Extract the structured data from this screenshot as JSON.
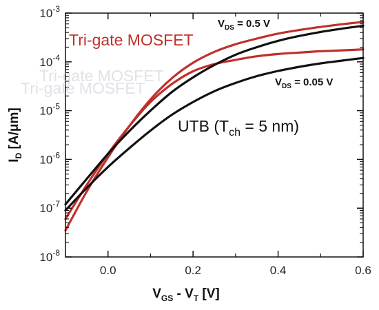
{
  "chart_data": {
    "type": "line",
    "title": "",
    "xlabel_main": "V",
    "xlabel_sub1": "GS",
    "xlabel_mid": " - V",
    "xlabel_sub2": "T",
    "xlabel_tail": " [V]",
    "ylabel_main": "I",
    "ylabel_sub": "D",
    "ylabel_tail": " [A/μm]",
    "xlim": [
      -0.1,
      0.6
    ],
    "ylim": [
      1e-08,
      0.001
    ],
    "y_scale": "log",
    "x_ticks": [
      0.0,
      0.2,
      0.4,
      0.6
    ],
    "x_tick_labels": [
      "0.0",
      "0.2",
      "0.4",
      "0.6"
    ],
    "y_ticks": [
      {
        "base": "10",
        "exp": "-8"
      },
      {
        "base": "10",
        "exp": "-7"
      },
      {
        "base": "10",
        "exp": "-6"
      },
      {
        "base": "10",
        "exp": "-5"
      },
      {
        "base": "10",
        "exp": "-4"
      },
      {
        "base": "10",
        "exp": "-3"
      }
    ],
    "grid": false,
    "series": [
      {
        "color": "#c0302a",
        "x": [
          -0.1,
          -0.05,
          0.0,
          0.05,
          0.1,
          0.15,
          0.2,
          0.25,
          0.3,
          0.35,
          0.4,
          0.45,
          0.5,
          0.55,
          0.6
        ],
        "y": [
          3.5e-08,
          2.2e-07,
          1.1e-06,
          4.8e-06,
          1.7e-05,
          4.6e-05,
          9.6e-05,
          0.00016,
          0.00023,
          0.0003,
          0.00038,
          0.00045,
          0.00052,
          0.00059,
          0.00066
        ]
      },
      {
        "color": "#c0302a",
        "x": [
          -0.1,
          -0.05,
          0.0,
          0.05,
          0.1,
          0.15,
          0.2,
          0.25,
          0.3,
          0.35,
          0.4,
          0.45,
          0.5,
          0.55,
          0.6
        ],
        "y": [
          6e-08,
          3e-07,
          1.3e-06,
          4.8e-06,
          1.5e-05,
          3.5e-05,
          6.4e-05,
          9e-05,
          0.00011,
          0.00013,
          0.000145,
          0.000155,
          0.000165,
          0.000172,
          0.00018
        ]
      },
      {
        "color": "#111111",
        "x": [
          -0.1,
          -0.05,
          0.0,
          0.05,
          0.1,
          0.15,
          0.2,
          0.25,
          0.3,
          0.35,
          0.4,
          0.45,
          0.5,
          0.55,
          0.6
        ],
        "y": [
          1.2e-07,
          4e-07,
          1.3e-06,
          3.8e-06,
          1e-05,
          2.4e-05,
          4.8e-05,
          8.6e-05,
          0.00014,
          0.0002,
          0.00027,
          0.00034,
          0.00041,
          0.00048,
          0.00055
        ]
      },
      {
        "color": "#111111",
        "x": [
          -0.1,
          -0.05,
          0.0,
          0.05,
          0.1,
          0.15,
          0.2,
          0.25,
          0.3,
          0.35,
          0.4,
          0.45,
          0.5,
          0.55,
          0.6
        ],
        "y": [
          9e-08,
          2.6e-07,
          7e-07,
          1.7e-06,
          3.9e-06,
          8.2e-06,
          1.5e-05,
          2.5e-05,
          3.7e-05,
          5.1e-05,
          6.5e-05,
          7.9e-05,
          9.3e-05,
          0.000106,
          0.00012
        ]
      }
    ],
    "annotations": {
      "vds_high_main": "V",
      "vds_high_sub": "DS",
      "vds_high_tail": " = 0.5 V",
      "vds_low_main": "V",
      "vds_low_sub": "DS",
      "vds_low_tail": " = 0.05 V",
      "trigate": "Tri-gate MOSFET",
      "utb_main": "UTB (T",
      "utb_sub": "ch",
      "utb_tail": " = 5 nm)"
    }
  }
}
